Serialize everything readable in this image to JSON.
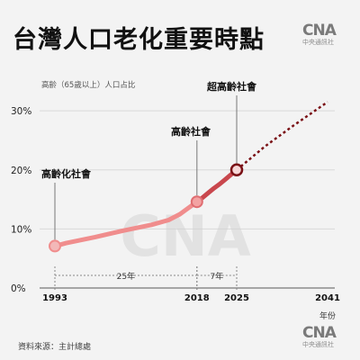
{
  "header": {
    "title": "台灣人口老化重要時點",
    "logo": "CNA",
    "logo_sub": "中央通訊社"
  },
  "source": {
    "label": "資料來源：主計總處"
  },
  "colors": {
    "line": "#f08d8d",
    "line_dark": "#c9474d",
    "projection": "#7a1116",
    "background": "#f3f3f3",
    "grid": "#d9d9d9"
  },
  "chart_data": {
    "type": "line",
    "title": "",
    "ylabel": "高齡（65歲以上）人口占比",
    "xlabel": "年份",
    "ylim": [
      0,
      32
    ],
    "xlim": [
      1993,
      2041
    ],
    "yticks": [
      0,
      10,
      20,
      30
    ],
    "ytick_labels": [
      "0%",
      "10%",
      "20%",
      "30%"
    ],
    "xticks": [
      1993,
      2018,
      2025,
      2041
    ],
    "grid": true,
    "series": [
      {
        "style": "actual",
        "x": [
          1993,
          1995,
          2000,
          2005,
          2010,
          2013,
          2015,
          2016,
          2017,
          2018,
          2019,
          2020,
          2021,
          2022,
          2023,
          2024,
          2025
        ],
        "y": [
          7.1,
          7.6,
          8.6,
          9.7,
          10.7,
          11.5,
          12.5,
          13.2,
          13.9,
          14.6,
          15.3,
          16.1,
          16.9,
          17.6,
          18.4,
          19.2,
          20.0
        ]
      },
      {
        "style": "projected",
        "x": [
          2025,
          2030,
          2035,
          2041
        ],
        "y": [
          20.0,
          24.0,
          27.5,
          31.5
        ]
      }
    ],
    "milestones": [
      {
        "x": 1993,
        "y": 7.1,
        "label": "高齡化社會"
      },
      {
        "x": 2018,
        "y": 14.6,
        "label": "高齡社會"
      },
      {
        "x": 2025,
        "y": 20.0,
        "label": "超高齡社會"
      }
    ],
    "intervals": [
      {
        "from": 1993,
        "to": 2018,
        "label": "25年"
      },
      {
        "from": 2018,
        "to": 2025,
        "label": "7年"
      }
    ]
  }
}
